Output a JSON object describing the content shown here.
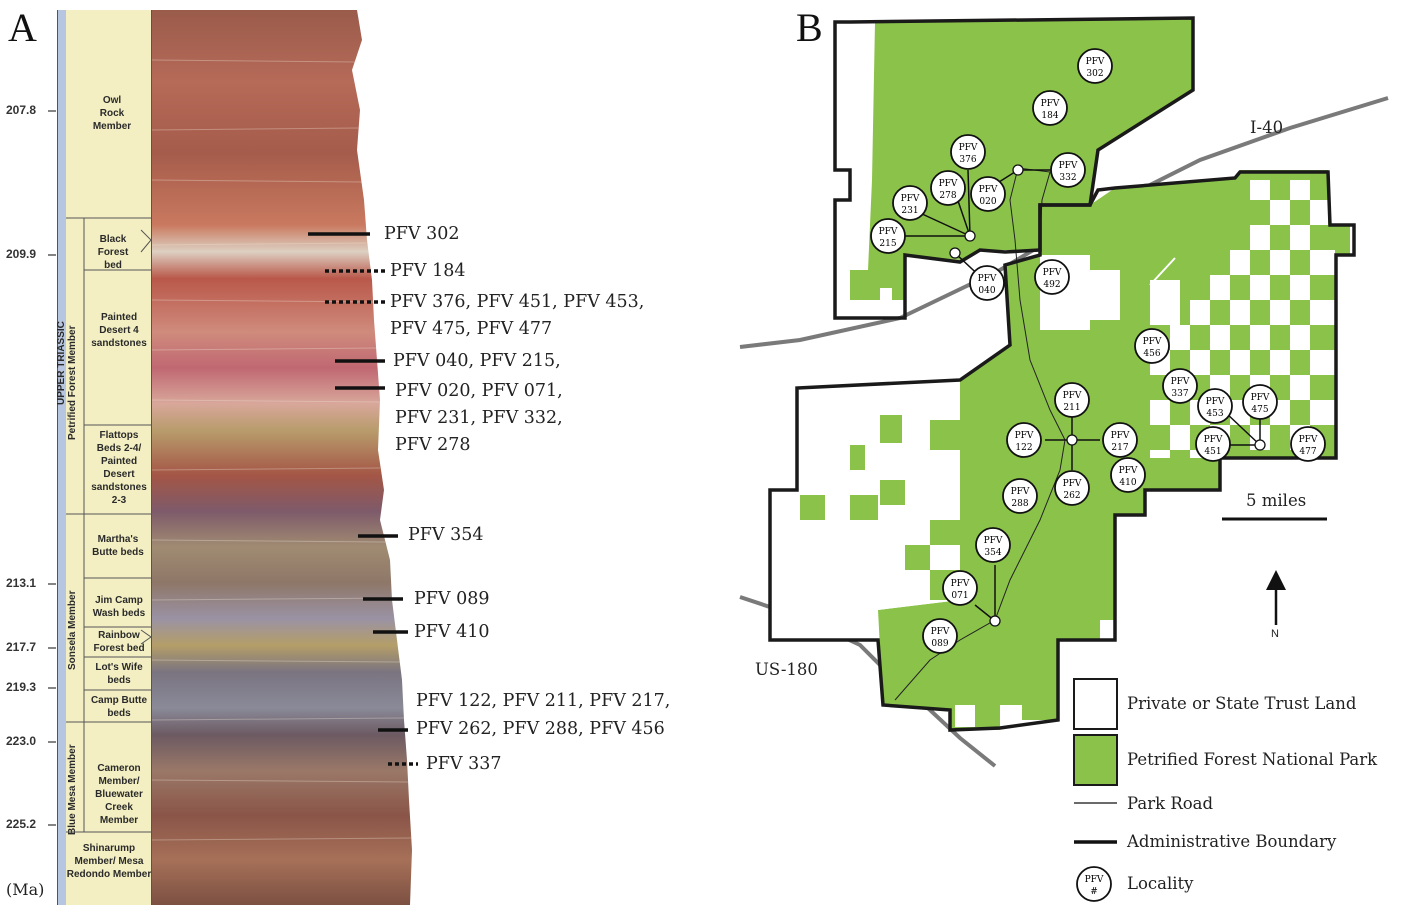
{
  "panel_a": {
    "letter": "A",
    "unit_label": "(Ma)",
    "ages": [
      "207.8",
      "209.9",
      "213.1",
      "217.7",
      "219.3",
      "223.0",
      "225.2"
    ],
    "period_label": "UPPER TRIASSIC",
    "member_labels": [
      "Petrified Forest Member",
      "Sonsela Member",
      "Blue Mesa Member"
    ],
    "units": {
      "owl_rock": "Owl Rock Member",
      "black_forest": "Black Forest bed",
      "painted_desert4": "Painted Desert 4 sandstones",
      "flattops": "Flattops Beds 2-4/ Painted Desert sandstones 2-3",
      "marthas": "Martha's Butte beds",
      "jim_camp": "Jim Camp Wash beds",
      "rainbow": "Rainbow Forest bed",
      "lots_wife": "Lot's Wife beds",
      "camp_butte": "Camp Butte beds",
      "cameron": "Cameron Member/ Bluewater Creek Member",
      "shinarump": "Shinarump Member/ Mesa Redondo Member"
    },
    "localities": {
      "l1": "PFV 302",
      "l2": "PFV 184",
      "l3a": "PFV 376, PFV 451, PFV 453,",
      "l3b": "PFV 475, PFV 477",
      "l4": "PFV 040, PFV 215,",
      "l5a": "PFV 020, PFV 071,",
      "l5b": "PFV 231, PFV 332,",
      "l5c": "PFV 278",
      "l6": "PFV 354",
      "l7": "PFV 089",
      "l8": "PFV 410",
      "l9a": "PFV 122, PFV 211, PFV 217,",
      "l9b": "PFV 262, PFV 288, PFV 456",
      "l10": "PFV 337"
    }
  },
  "panel_b": {
    "letter": "B",
    "roads": {
      "i40": "I-40",
      "us180": "US-180"
    },
    "scale": "5 miles",
    "north": "N",
    "marker_prefix": "PFV",
    "markers": [
      {
        "num": "302"
      },
      {
        "num": "184"
      },
      {
        "num": "376"
      },
      {
        "num": "278"
      },
      {
        "num": "020"
      },
      {
        "num": "332"
      },
      {
        "num": "231"
      },
      {
        "num": "215"
      },
      {
        "num": "040"
      },
      {
        "num": "492"
      },
      {
        "num": "456"
      },
      {
        "num": "211"
      },
      {
        "num": "122"
      },
      {
        "num": "217"
      },
      {
        "num": "262"
      },
      {
        "num": "410"
      },
      {
        "num": "288"
      },
      {
        "num": "337"
      },
      {
        "num": "453"
      },
      {
        "num": "475"
      },
      {
        "num": "451"
      },
      {
        "num": "477"
      },
      {
        "num": "354"
      },
      {
        "num": "071"
      },
      {
        "num": "089"
      }
    ],
    "legend": {
      "private": "Private or State Trust Land",
      "park": "Petrified Forest National Park",
      "road": "Park Road",
      "boundary": "Administrative Boundary",
      "locality": "Locality",
      "locality_symbol_top": "PFV",
      "locality_symbol_bottom": "#"
    },
    "colors": {
      "park_green": "#8bc34a",
      "road_gray": "#7a7a7a",
      "boundary": "#1a1a1a"
    }
  }
}
